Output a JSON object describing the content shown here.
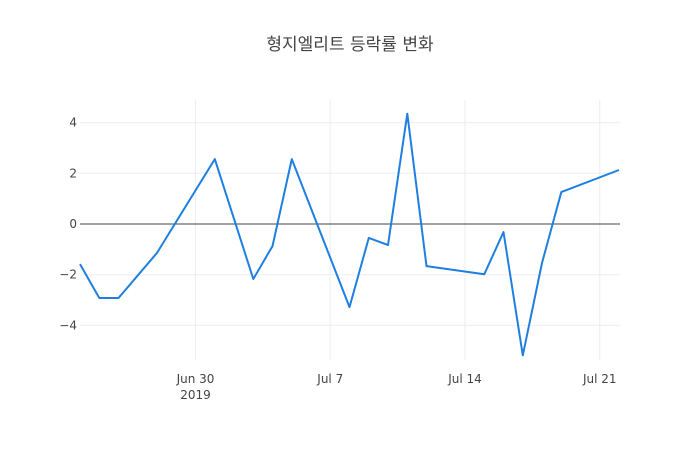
{
  "chart_data": {
    "type": "line",
    "title": "형지엘리트 등락률 변화",
    "xlabel": "",
    "ylabel": "",
    "x": [
      "2019-06-24",
      "2019-06-25",
      "2019-06-26",
      "2019-06-28",
      "2019-07-01",
      "2019-07-03",
      "2019-07-04",
      "2019-07-05",
      "2019-07-08",
      "2019-07-09",
      "2019-07-10",
      "2019-07-11",
      "2019-07-12",
      "2019-07-15",
      "2019-07-16",
      "2019-07-17",
      "2019-07-18",
      "2019-07-19",
      "2019-07-22"
    ],
    "series": [
      {
        "name": "등락률",
        "color": "#1f7fe0",
        "values": [
          -1.58,
          -2.92,
          -2.92,
          -1.14,
          2.56,
          -2.17,
          -0.87,
          2.56,
          -3.28,
          -0.55,
          -0.83,
          4.35,
          -1.66,
          -1.98,
          -0.32,
          -5.18,
          -1.54,
          1.26,
          2.13
        ]
      }
    ],
    "x_ticks": [
      {
        "label": "Jun 30",
        "sublabel": "2019",
        "date": "2019-06-30"
      },
      {
        "label": "Jul 7",
        "date": "2019-07-07"
      },
      {
        "label": "Jul 14",
        "date": "2019-07-14"
      },
      {
        "label": "Jul 21",
        "date": "2019-07-21"
      }
    ],
    "y_ticks": [
      4,
      2,
      0,
      -2,
      -4
    ],
    "y_tick_labels": [
      "4",
      "2",
      "0",
      "−2",
      "−4"
    ],
    "ylim": [
      -5.4,
      4.8
    ],
    "xlim": [
      "2019-06-24",
      "2019-07-22"
    ],
    "grid": true,
    "zero_line": true,
    "legend": false
  }
}
